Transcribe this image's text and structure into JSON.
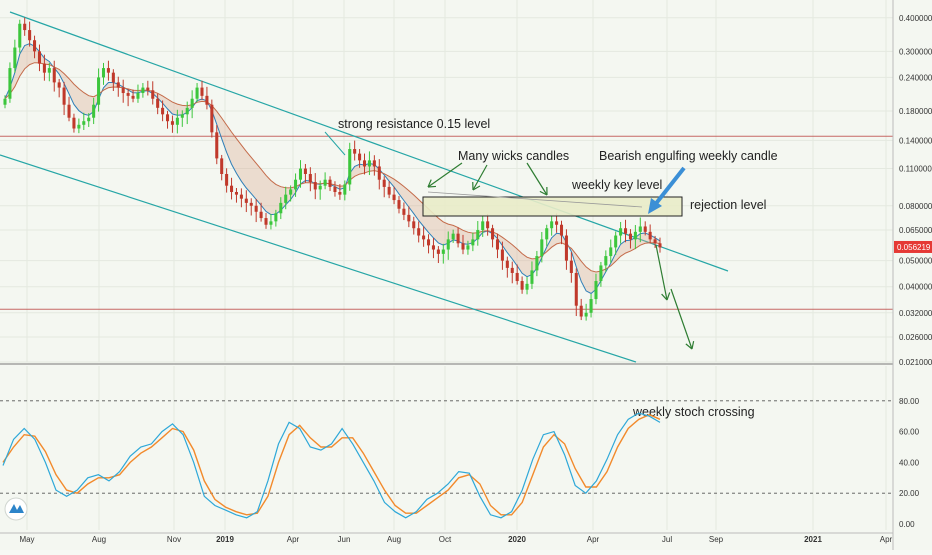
{
  "chart_data": {
    "type": "candlestick",
    "timeframe": "weekly",
    "price_axis": {
      "scale": "log",
      "ticks": [
        "0.400000",
        "0.300000",
        "0.240000",
        "0.180000",
        "0.140000",
        "0.110000",
        "0.080000",
        "0.065000",
        "0.050000",
        "0.040000",
        "0.032000",
        "0.026000",
        "0.021000"
      ],
      "range": [
        0.021,
        0.45
      ]
    },
    "last_price": "0.056219",
    "time_axis": {
      "labels": [
        "May",
        "Aug",
        "Nov",
        "2019",
        "Apr",
        "Jun",
        "Aug",
        "Oct",
        "2020",
        "Apr",
        "Jul",
        "Sep",
        "2021",
        "Apr"
      ],
      "bold": [
        "2019",
        "2020",
        "2021"
      ]
    },
    "horizontal_lines": [
      {
        "price": 0.145,
        "color": "#c0504d"
      },
      {
        "price": 0.033,
        "color": "#c0504d"
      }
    ],
    "annotations": [
      "strong resistance 0.15 level",
      "Many wicks candles",
      "Bearish engulfing weekly candle",
      "weekly key level",
      "rejection level",
      "weekly stoch crossing"
    ],
    "oscillator": {
      "name": "stochastic",
      "ticks": [
        "80.00",
        "60.00",
        "40.00",
        "20.00",
        "0.00"
      ],
      "range": [
        0,
        100
      ],
      "levels": [
        80,
        20
      ],
      "k": [
        38,
        55,
        62,
        55,
        40,
        22,
        18,
        22,
        30,
        32,
        28,
        34,
        44,
        50,
        52,
        60,
        65,
        58,
        40,
        18,
        12,
        9,
        6,
        4,
        8,
        28,
        52,
        66,
        62,
        50,
        48,
        52,
        62,
        52,
        40,
        28,
        14,
        8,
        4,
        8,
        16,
        20,
        26,
        34,
        33,
        18,
        6,
        4,
        8,
        22,
        42,
        58,
        60,
        45,
        25,
        20,
        28,
        42,
        58,
        68,
        72,
        70,
        66
      ],
      "d": [
        40,
        50,
        58,
        57,
        47,
        32,
        22,
        20,
        26,
        30,
        30,
        32,
        40,
        46,
        50,
        56,
        62,
        60,
        48,
        28,
        16,
        11,
        8,
        6,
        7,
        18,
        40,
        58,
        64,
        56,
        50,
        50,
        56,
        56,
        46,
        34,
        22,
        12,
        7,
        7,
        12,
        17,
        22,
        30,
        32,
        26,
        12,
        6,
        6,
        14,
        32,
        50,
        58,
        52,
        36,
        24,
        24,
        34,
        50,
        62,
        68,
        71,
        68
      ]
    }
  }
}
